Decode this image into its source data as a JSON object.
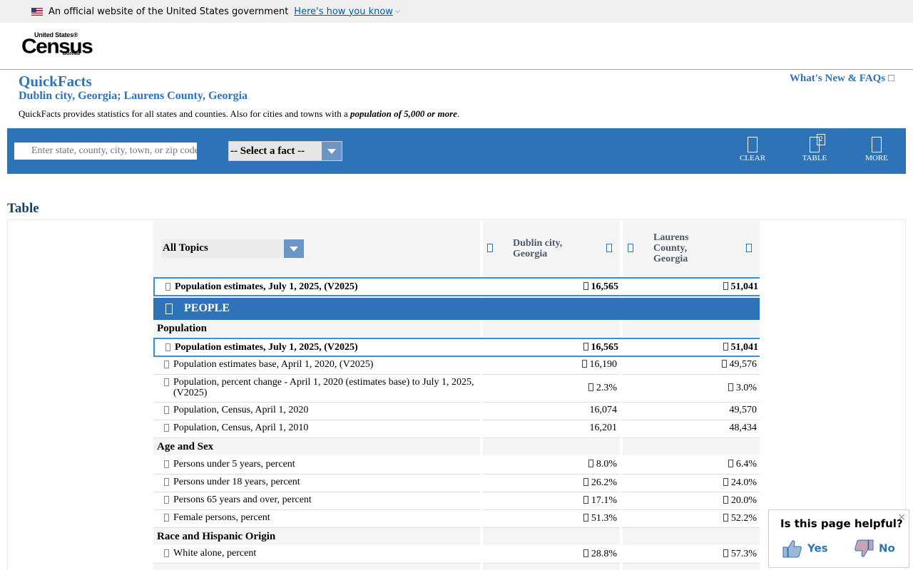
{
  "gov_banner": {
    "text": "An official website of the United States government",
    "link": "Here's how you know"
  },
  "logo": {
    "line1": "United States®",
    "line2": "Census",
    "line3": "Bureau"
  },
  "page": {
    "title": "QuickFacts",
    "subtitle": "Dublin city, Georgia; Laurens County, Georgia",
    "desc_prefix": "QuickFacts provides statistics for all states and counties. Also for cities and towns with a ",
    "desc_emph": "population of 5,000 or more",
    "desc_suffix": ".",
    "whats_new": "What's New & FAQs"
  },
  "toolbar": {
    "search_placeholder": "Enter state, county, city, town, or zip code",
    "select_label": "-- Select a fact --",
    "clear": "CLEAR",
    "table": "TABLE",
    "table_badge": "2",
    "more": "MORE"
  },
  "table": {
    "heading": "Table",
    "topics": "All Topics",
    "col1": "Dublin city, Georgia",
    "col2": "Laurens County, Georgia",
    "highlight": {
      "label": "Population estimates, July 1, 2025, (V2025)",
      "v1": "16,565",
      "v2": "51,041"
    },
    "people": "PEOPLE",
    "sec_population": "Population",
    "rows_pop": [
      {
        "label": "Population estimates, July 1, 2025, (V2025)",
        "v1": "16,565",
        "v2": "51,041"
      },
      {
        "label": "Population estimates base, April 1, 2020, (V2025)",
        "v1": "16,190",
        "v2": "49,576"
      },
      {
        "label": "Population, percent change - April 1, 2020 (estimates base) to July 1, 2025, (V2025)",
        "v1": "2.3%",
        "v2": "3.0%"
      },
      {
        "label": "Population, Census, April 1, 2020",
        "v1": "16,074",
        "v2": "49,570"
      },
      {
        "label": "Population, Census, April 1, 2010",
        "v1": "16,201",
        "v2": "48,434"
      }
    ],
    "sec_age": "Age and Sex",
    "rows_age": [
      {
        "label": "Persons under 5 years, percent",
        "v1": "8.0%",
        "v2": "6.4%"
      },
      {
        "label": "Persons under 18 years, percent",
        "v1": "26.2%",
        "v2": "24.0%"
      },
      {
        "label": "Persons 65 years and over, percent",
        "v1": "17.1%",
        "v2": "20.0%"
      },
      {
        "label": "Female persons, percent",
        "v1": "51.3%",
        "v2": "52.2%"
      }
    ],
    "sec_race": "Race and Hispanic Origin",
    "rows_race": [
      {
        "label": "White alone, percent",
        "v1": "28.8%",
        "v2": "57.3%"
      }
    ]
  },
  "feedback": {
    "question": "Is this page helpful?",
    "yes": "Yes",
    "no": "No",
    "close": "×"
  },
  "colors": {
    "primary": "#2e73b8",
    "highlight_border": "#3a8ed6"
  }
}
